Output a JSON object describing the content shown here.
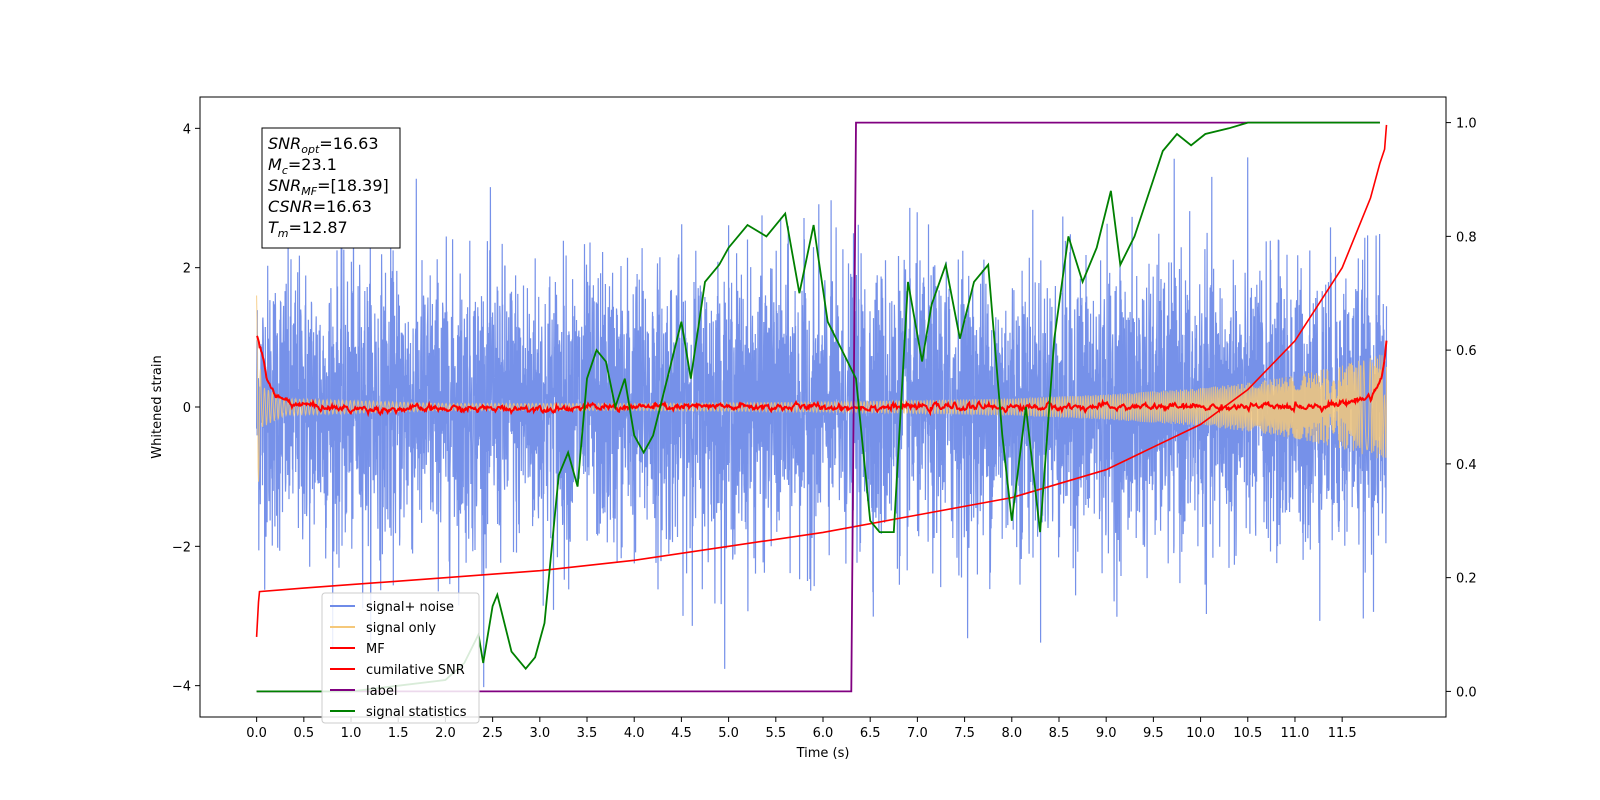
{
  "chart_data": {
    "type": "line",
    "xlabel": "Time (s)",
    "ylabel": "Whitened strain",
    "xlim": [
      -0.6,
      12.6
    ],
    "ylim": [
      -4.45,
      4.45
    ],
    "y2lim": [
      -0.045,
      1.045
    ],
    "x_ticks": [
      0.0,
      0.5,
      1.0,
      1.5,
      2.0,
      2.5,
      3.0,
      3.5,
      4.0,
      4.5,
      5.0,
      5.5,
      6.0,
      6.5,
      7.0,
      7.5,
      8.0,
      8.5,
      9.0,
      9.5,
      10.0,
      10.5,
      11.0,
      11.5
    ],
    "x_tick_labels": [
      "0.0",
      "0.5",
      "1.0",
      "1.5",
      "2.0",
      "2.5",
      "3.0",
      "3.5",
      "4.0",
      "4.5",
      "5.0",
      "5.5",
      "6.0",
      "6.5",
      "7.0",
      "7.5",
      "8.0",
      "8.5",
      "9.0",
      "9.5",
      "10.0",
      "10.5",
      "11.0",
      "11.5"
    ],
    "y_ticks": [
      -4,
      -2,
      0,
      2,
      4
    ],
    "y_tick_labels": [
      "−4",
      "−2",
      "0",
      "2",
      "4"
    ],
    "y2_ticks": [
      0.0,
      0.2,
      0.4,
      0.6,
      0.8,
      1.0
    ],
    "y2_tick_labels": [
      "0.0",
      "0.2",
      "0.4",
      "0.6",
      "0.8",
      "1.0"
    ],
    "grid": false,
    "legend_position": "lower-left",
    "series": [
      {
        "name": "signal+ noise",
        "axis": "left",
        "color": "#6f8be8",
        "noise_std": 1.0,
        "noise_range": [
          -4.15,
          4.0
        ],
        "x_range": [
          0.0,
          11.97
        ]
      },
      {
        "name": "signal only",
        "axis": "left",
        "color": "#f5c87a",
        "envelope": {
          "x": [
            0.0,
            0.05,
            0.3,
            2.0,
            4.0,
            6.0,
            8.0,
            9.0,
            10.0,
            10.5,
            11.0,
            11.5,
            11.9,
            11.97
          ],
          "amp": [
            1.6,
            0.3,
            0.12,
            0.05,
            0.05,
            0.07,
            0.12,
            0.18,
            0.27,
            0.35,
            0.45,
            0.6,
            0.75,
            0.75
          ]
        }
      },
      {
        "name": "MF",
        "axis": "left",
        "color": "#ff0000",
        "x": [
          0.0,
          0.05,
          0.1,
          0.2,
          0.4,
          0.7,
          1.0,
          2.0,
          4.0,
          6.0,
          8.0,
          10.0,
          11.0,
          11.5,
          11.8,
          11.9,
          11.95,
          11.97
        ],
        "y": [
          1.0,
          0.8,
          0.45,
          0.15,
          0.05,
          0.0,
          -0.03,
          -0.03,
          0.0,
          0.0,
          0.0,
          0.0,
          0.0,
          0.05,
          0.15,
          0.35,
          0.7,
          0.95
        ]
      },
      {
        "name": "cumilative SNR",
        "axis": "left",
        "color": "#ff0000",
        "x": [
          0.0,
          0.02,
          0.03,
          0.5,
          1.0,
          2.0,
          3.0,
          4.0,
          5.0,
          6.0,
          7.0,
          8.0,
          9.0,
          10.0,
          10.5,
          11.0,
          11.5,
          11.8,
          11.9,
          11.95,
          11.97
        ],
        "y": [
          -3.3,
          -2.8,
          -2.65,
          -2.6,
          -2.55,
          -2.45,
          -2.35,
          -2.2,
          -2.0,
          -1.8,
          -1.55,
          -1.3,
          -0.9,
          -0.25,
          0.25,
          0.95,
          2.0,
          3.0,
          3.5,
          3.7,
          4.05
        ]
      },
      {
        "name": "label",
        "axis": "right",
        "color": "#800080",
        "x": [
          0.0,
          6.3,
          6.35,
          11.9
        ],
        "y": [
          0.0,
          0.0,
          1.0,
          1.0
        ]
      },
      {
        "name": "signal statistics",
        "axis": "right",
        "color": "#008000",
        "x": [
          0.0,
          0.5,
          1.0,
          1.5,
          2.0,
          2.2,
          2.35,
          2.4,
          2.5,
          2.55,
          2.7,
          2.85,
          2.95,
          3.05,
          3.2,
          3.3,
          3.4,
          3.5,
          3.6,
          3.7,
          3.8,
          3.9,
          4.0,
          4.1,
          4.2,
          4.35,
          4.5,
          4.6,
          4.75,
          4.9,
          5.0,
          5.2,
          5.4,
          5.6,
          5.75,
          5.9,
          6.05,
          6.2,
          6.35,
          6.5,
          6.6,
          6.75,
          6.9,
          7.05,
          7.15,
          7.3,
          7.45,
          7.6,
          7.75,
          7.9,
          8.0,
          8.15,
          8.3,
          8.45,
          8.6,
          8.75,
          8.9,
          9.05,
          9.15,
          9.3,
          9.5,
          9.6,
          9.75,
          9.9,
          10.05,
          10.3,
          10.5,
          10.8,
          11.2,
          11.6,
          11.9
        ],
        "y": [
          0.0,
          0.0,
          0.0,
          0.01,
          0.02,
          0.05,
          0.1,
          0.05,
          0.15,
          0.17,
          0.07,
          0.04,
          0.06,
          0.12,
          0.38,
          0.42,
          0.36,
          0.55,
          0.6,
          0.58,
          0.5,
          0.55,
          0.45,
          0.42,
          0.45,
          0.55,
          0.65,
          0.55,
          0.72,
          0.75,
          0.78,
          0.82,
          0.8,
          0.84,
          0.7,
          0.82,
          0.65,
          0.6,
          0.55,
          0.3,
          0.28,
          0.28,
          0.72,
          0.58,
          0.68,
          0.75,
          0.62,
          0.72,
          0.75,
          0.45,
          0.3,
          0.5,
          0.28,
          0.62,
          0.8,
          0.72,
          0.78,
          0.88,
          0.75,
          0.8,
          0.9,
          0.95,
          0.98,
          0.96,
          0.98,
          0.99,
          1.0,
          1.0,
          1.0,
          1.0,
          1.0
        ]
      }
    ],
    "annotation_lines": [
      {
        "label": "SNR",
        "sub": "opt",
        "value": "=16.63"
      },
      {
        "label": "M",
        "sub": "c",
        "value": "=23.1"
      },
      {
        "label": "SNR",
        "sub": "MF",
        "value": "=[18.39]"
      },
      {
        "label": "CSNR",
        "sub": "",
        "value": "=16.63"
      },
      {
        "label": "T",
        "sub": "m",
        "value": "=12.87"
      }
    ]
  }
}
